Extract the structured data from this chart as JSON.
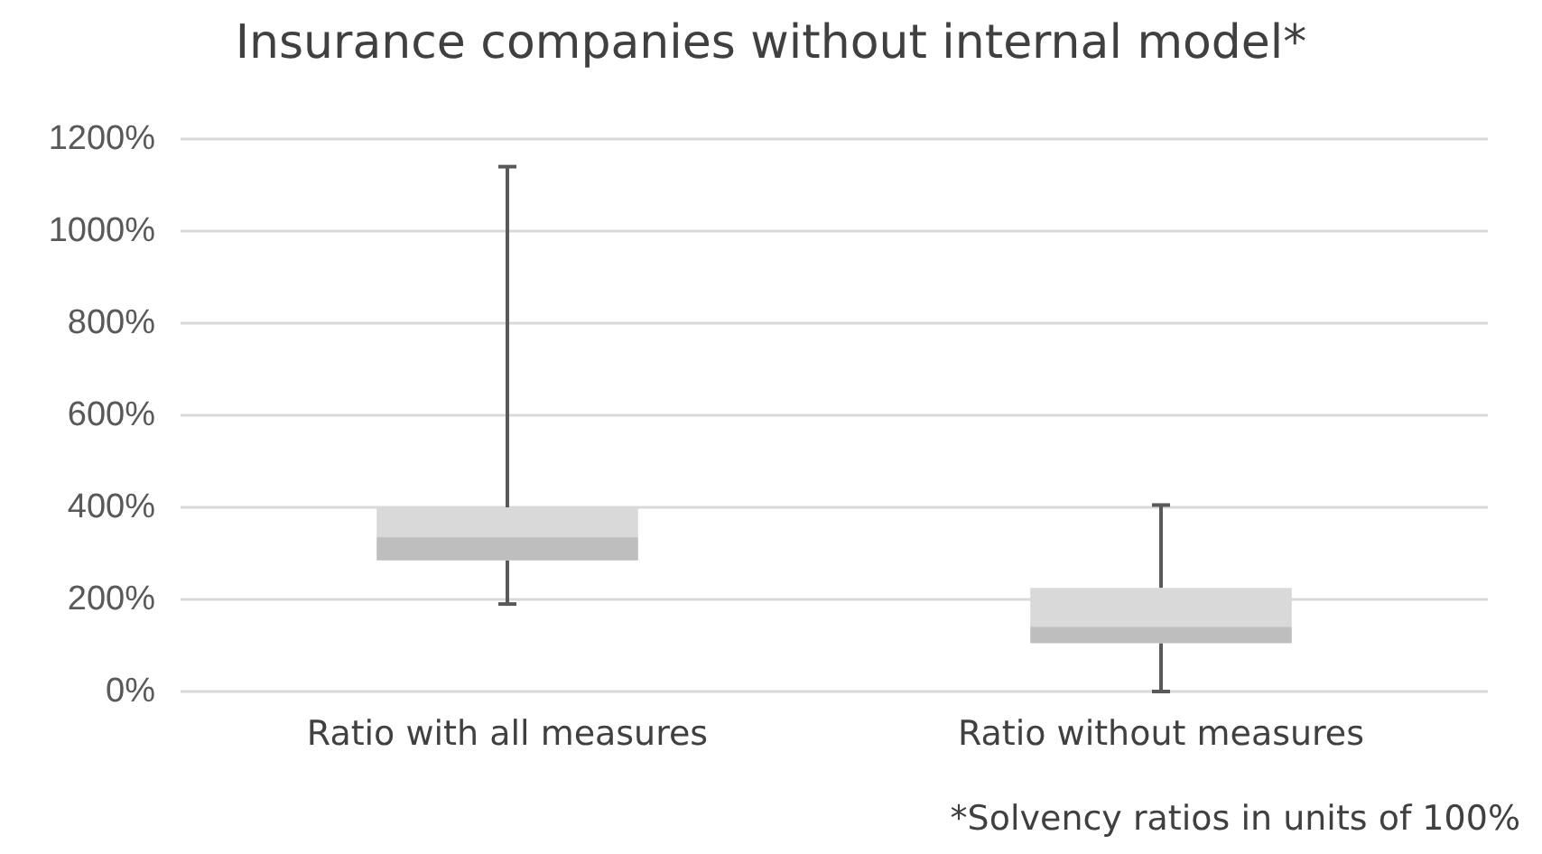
{
  "chart_data": {
    "type": "box",
    "title": "Insurance companies without internal model*",
    "categories": [
      "Ratio with all measures",
      "Ratio without measures"
    ],
    "series": [
      {
        "color": "#d9d9d9",
        "boxes": [
          {
            "low": 190,
            "q1": 285,
            "median": 335,
            "q3": 400,
            "high": 1140
          },
          {
            "low": 0,
            "q1": 105,
            "median": 140,
            "q3": 225,
            "high": 405
          }
        ]
      }
    ],
    "ylim": [
      0,
      1200
    ],
    "yticks": [
      {
        "value": 0,
        "label": "0%"
      },
      {
        "value": 200,
        "label": "200%"
      },
      {
        "value": 400,
        "label": "400%"
      },
      {
        "value": 600,
        "label": "600%"
      },
      {
        "value": 800,
        "label": "800%"
      },
      {
        "value": 1000,
        "label": "1000%"
      },
      {
        "value": 1200,
        "label": "1200%"
      }
    ],
    "grid": "y",
    "annotations": [
      "*Solvency ratios in units of 100%"
    ]
  }
}
